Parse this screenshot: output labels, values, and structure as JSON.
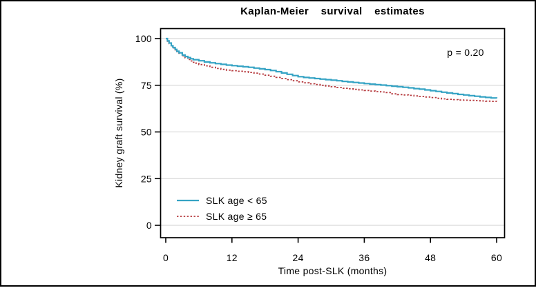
{
  "chart_data": {
    "type": "line",
    "subtype": "km-step",
    "title": "Kaplan-Meier survival estimates",
    "xlabel": "Time post-SLK (months)",
    "ylabel": "Kidney graft survival (%)",
    "xlim": [
      0,
      60
    ],
    "ylim": [
      0,
      100
    ],
    "xticks": [
      0,
      12,
      24,
      36,
      48,
      60
    ],
    "yticks": [
      0,
      25,
      50,
      75,
      100
    ],
    "grid": true,
    "legend_position": "inside-bottom-left",
    "annotation": {
      "text": "p = 0.20"
    },
    "colors": {
      "axis": "#000000",
      "gridline": "#cfcfcf",
      "background": "#ffffff"
    },
    "series": [
      {
        "name": "SLK age < 65",
        "color": "#35a3c4",
        "style": "solid",
        "points": [
          [
            0,
            100
          ],
          [
            0.3,
            98.8
          ],
          [
            0.6,
            97.6
          ],
          [
            1,
            96.2
          ],
          [
            1.3,
            95.2
          ],
          [
            1.7,
            94.2
          ],
          [
            2,
            93.2
          ],
          [
            2.4,
            92.4
          ],
          [
            3,
            91.2
          ],
          [
            3.5,
            90.4
          ],
          [
            4,
            89.8
          ],
          [
            4.5,
            89.2
          ],
          [
            5,
            88.7
          ],
          [
            6,
            88.1
          ],
          [
            7,
            87.5
          ],
          [
            8,
            87.0
          ],
          [
            9,
            86.6
          ],
          [
            10,
            86.2
          ],
          [
            11,
            85.8
          ],
          [
            12,
            85.5
          ],
          [
            13,
            85.2
          ],
          [
            14,
            84.9
          ],
          [
            15,
            84.6
          ],
          [
            16,
            84.2
          ],
          [
            17,
            83.8
          ],
          [
            18,
            83.4
          ],
          [
            19,
            82.9
          ],
          [
            20,
            82.3
          ],
          [
            21,
            81.6
          ],
          [
            22,
            80.9
          ],
          [
            23,
            80.2
          ],
          [
            24,
            79.6
          ],
          [
            25,
            79.2
          ],
          [
            26,
            78.9
          ],
          [
            27,
            78.6
          ],
          [
            28,
            78.3
          ],
          [
            29,
            78.0
          ],
          [
            30,
            77.7
          ],
          [
            31,
            77.4
          ],
          [
            32,
            77.1
          ],
          [
            33,
            76.8
          ],
          [
            34,
            76.5
          ],
          [
            35,
            76.2
          ],
          [
            36,
            75.9
          ],
          [
            37,
            75.6
          ],
          [
            38,
            75.3
          ],
          [
            39,
            75.1
          ],
          [
            40,
            74.8
          ],
          [
            41,
            74.5
          ],
          [
            42,
            74.2
          ],
          [
            43,
            73.9
          ],
          [
            44,
            73.6
          ],
          [
            45,
            73.2
          ],
          [
            46,
            72.9
          ],
          [
            47,
            72.5
          ],
          [
            48,
            72.1
          ],
          [
            49,
            71.7
          ],
          [
            50,
            71.3
          ],
          [
            51,
            70.9
          ],
          [
            52,
            70.5
          ],
          [
            53,
            70.1
          ],
          [
            54,
            69.8
          ],
          [
            55,
            69.4
          ],
          [
            56,
            69.1
          ],
          [
            57,
            68.8
          ],
          [
            58,
            68.5
          ],
          [
            59,
            68.2
          ],
          [
            60,
            68.0
          ]
        ]
      },
      {
        "name": "SLK age ≥ 65",
        "color": "#b5383c",
        "style": "dotted",
        "points": [
          [
            0,
            100
          ],
          [
            0.3,
            98.6
          ],
          [
            0.6,
            97.3
          ],
          [
            1,
            96.0
          ],
          [
            1.3,
            95.0
          ],
          [
            1.7,
            94.0
          ],
          [
            2,
            93.0
          ],
          [
            2.4,
            92.1
          ],
          [
            3,
            90.8
          ],
          [
            3.5,
            89.7
          ],
          [
            4,
            88.8
          ],
          [
            4.5,
            88.0
          ],
          [
            5,
            87.3
          ],
          [
            5.5,
            86.7
          ],
          [
            6,
            86.1
          ],
          [
            7,
            85.4
          ],
          [
            8,
            84.6
          ],
          [
            9,
            84.0
          ],
          [
            10,
            83.5
          ],
          [
            11,
            83.1
          ],
          [
            12,
            82.8
          ],
          [
            13,
            82.5
          ],
          [
            14,
            82.2
          ],
          [
            15,
            81.9
          ],
          [
            16,
            81.5
          ],
          [
            17,
            81.0
          ],
          [
            18,
            80.4
          ],
          [
            19,
            79.8
          ],
          [
            20,
            79.2
          ],
          [
            21,
            78.6
          ],
          [
            22,
            78.0
          ],
          [
            23,
            77.4
          ],
          [
            24,
            76.8
          ],
          [
            25,
            76.3
          ],
          [
            26,
            75.8
          ],
          [
            27,
            75.4
          ],
          [
            28,
            75.0
          ],
          [
            29,
            74.6
          ],
          [
            30,
            74.2
          ],
          [
            31,
            73.8
          ],
          [
            32,
            73.4
          ],
          [
            33,
            73.1
          ],
          [
            34,
            72.8
          ],
          [
            35,
            72.5
          ],
          [
            36,
            72.2
          ],
          [
            37,
            71.9
          ],
          [
            38,
            71.6
          ],
          [
            39,
            71.4
          ],
          [
            40,
            71.1
          ],
          [
            41,
            70.4
          ],
          [
            42,
            70.0
          ],
          [
            43,
            69.8
          ],
          [
            44,
            69.6
          ],
          [
            45,
            69.3
          ],
          [
            46,
            69.0
          ],
          [
            47,
            68.7
          ],
          [
            48,
            68.4
          ],
          [
            49,
            68.0
          ],
          [
            50,
            67.7
          ],
          [
            51,
            67.5
          ],
          [
            52,
            67.3
          ],
          [
            53,
            67.1
          ],
          [
            54,
            67.0
          ],
          [
            55,
            66.9
          ],
          [
            56,
            66.8
          ],
          [
            57,
            66.6
          ],
          [
            58,
            66.5
          ],
          [
            59,
            66.4
          ],
          [
            60,
            66.3
          ]
        ]
      }
    ]
  }
}
